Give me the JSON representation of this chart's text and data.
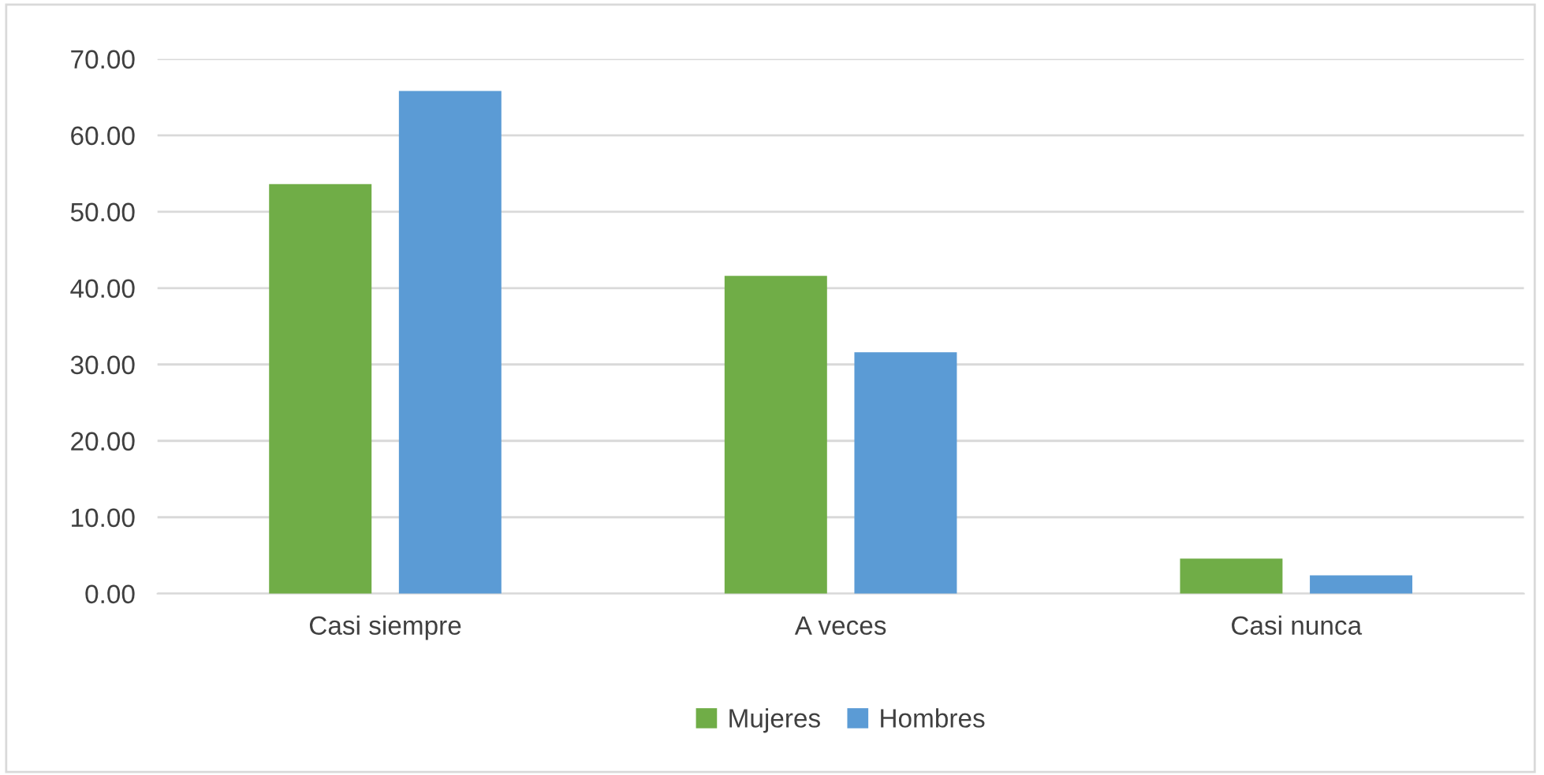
{
  "chart_data": {
    "type": "bar",
    "categories": [
      "Casi siempre",
      "A veces",
      "Casi nunca"
    ],
    "series": [
      {
        "name": "Mujeres",
        "color": "#70ad47",
        "values": [
          53.6,
          41.6,
          4.6
        ]
      },
      {
        "name": "Hombres",
        "color": "#5b9bd5",
        "values": [
          65.8,
          31.6,
          2.4
        ]
      }
    ],
    "ylim": [
      0,
      70
    ],
    "yticks": [
      {
        "value": 0,
        "label": "0.00"
      },
      {
        "value": 10,
        "label": "10.00"
      },
      {
        "value": 20,
        "label": "20.00"
      },
      {
        "value": 30,
        "label": "30.00"
      },
      {
        "value": 40,
        "label": "40.00"
      },
      {
        "value": 50,
        "label": "50.00"
      },
      {
        "value": 60,
        "label": "60.00"
      },
      {
        "value": 70,
        "label": "70.00"
      }
    ],
    "grid": "y",
    "legend": "bottom"
  }
}
